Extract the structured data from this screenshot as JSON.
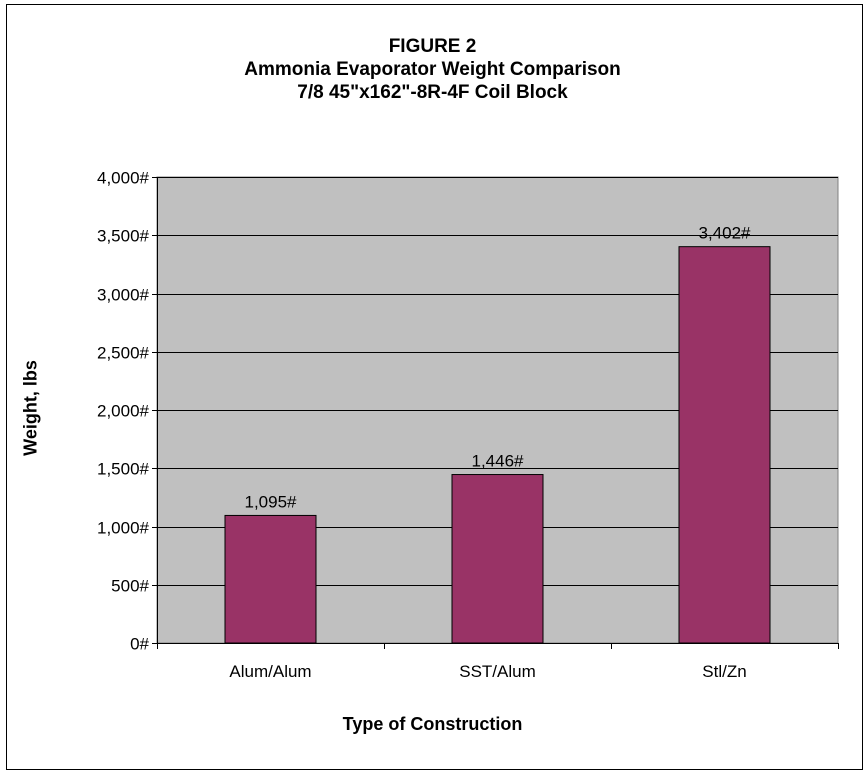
{
  "chart_data": {
    "type": "bar",
    "title_lines": [
      "FIGURE 2",
      "Ammonia Evaporator Weight Comparison",
      "7/8 45\"x162\"-8R-4F Coil  Block"
    ],
    "xlabel": "Type of Construction",
    "ylabel": "Weight, lbs",
    "categories": [
      "Alum/Alum",
      "SST/Alum",
      "Stl/Zn"
    ],
    "values": [
      1095,
      1446,
      3402
    ],
    "data_labels": [
      "1,095#",
      "1,446#",
      "3,402#"
    ],
    "ylim": [
      0,
      4000
    ],
    "yticks": [
      0,
      500,
      1000,
      1500,
      2000,
      2500,
      3000,
      3500,
      4000
    ],
    "ytick_labels": [
      "0#",
      "500#",
      "1,000#",
      "1,500#",
      "2,000#",
      "2,500#",
      "3,000#",
      "3,500#",
      "4,000#"
    ],
    "grid": true,
    "legend": "none",
    "colors": {
      "bar": "#993366",
      "plot_background": "#c0c0c0",
      "gridline": "#000000",
      "page_background": "#ffffff"
    }
  }
}
